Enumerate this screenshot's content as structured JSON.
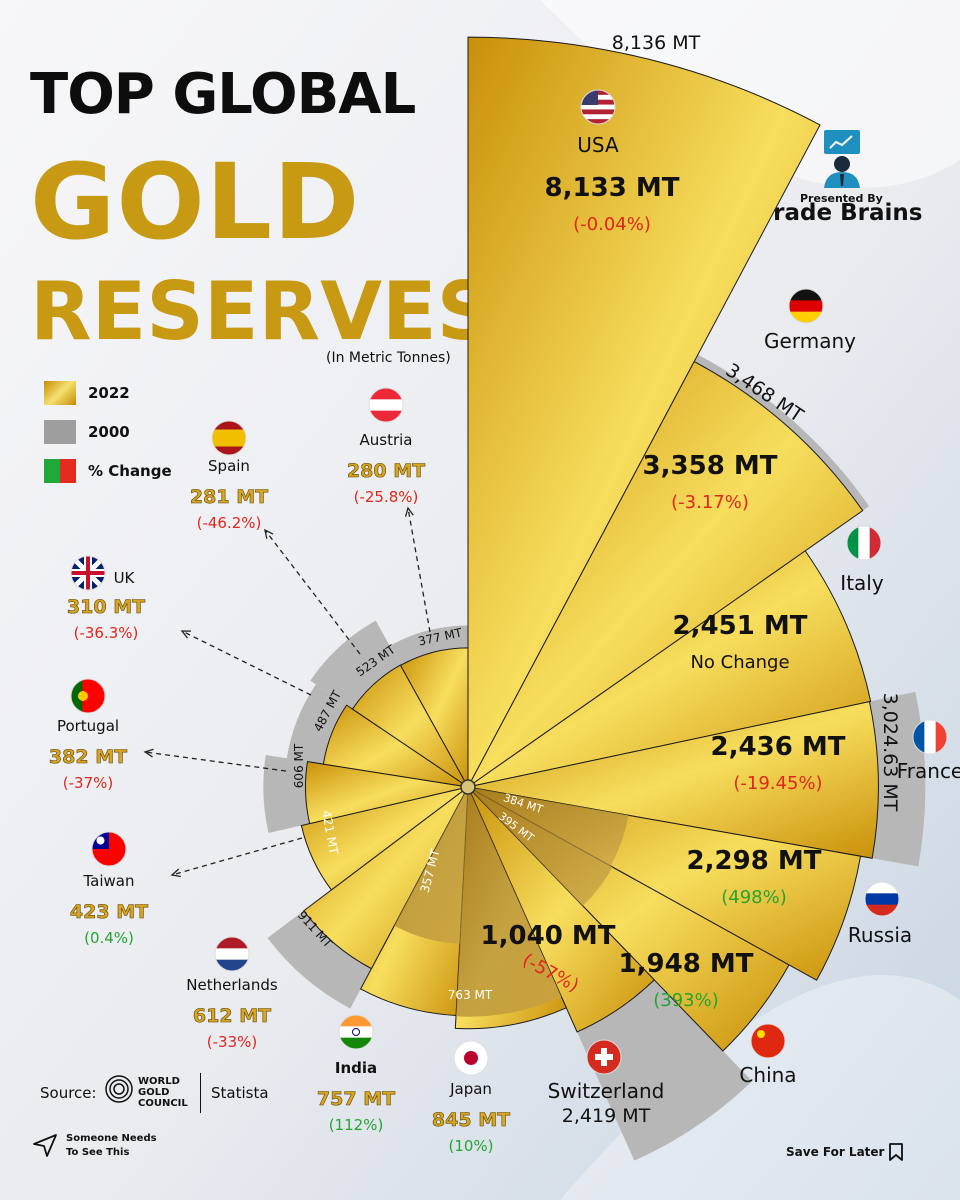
{
  "header": {
    "title_line1": "TOP GLOBAL",
    "title_line2": "GOLD",
    "title_line3": "RESERVES",
    "subtitle": "(In Metric Tonnes)"
  },
  "legend": [
    {
      "label": "2022",
      "style": "gold"
    },
    {
      "label": "2000",
      "style": "grey"
    },
    {
      "label": "% Change",
      "style": "change"
    }
  ],
  "branding": {
    "presented_by": "Presented By",
    "name": "Trade Brains",
    "icon": "presenter-icon"
  },
  "footer": {
    "source_label": "Source:",
    "wgc_line1": "WORLD",
    "wgc_line2": "GOLD",
    "wgc_line3": "COUNCIL",
    "statista": "Statista",
    "share_line1": "Someone Needs",
    "share_line2": "To See This",
    "save": "Save For Later"
  },
  "colors": {
    "gold_dark": "#c9900a",
    "gold_light": "#f8de5e",
    "grey": "#b7b7b7",
    "negative": "#e1261c",
    "positive": "#23a530",
    "text": "#111111"
  },
  "chart_data": {
    "type": "polar-bar",
    "title": "TOP GLOBAL GOLD RESERVES",
    "unit": "(In Metric Tonnes)",
    "series": [
      {
        "name": "2022"
      },
      {
        "name": "2000"
      },
      {
        "name": "% Change"
      }
    ],
    "countries": [
      {
        "name": "USA",
        "value_2022": 8133,
        "value_2000": 8136,
        "label_2022": "8,133 MT",
        "label_2000": "8,136 MT",
        "change": "(-0.04%)",
        "direction": "negative",
        "flag": "us-flag"
      },
      {
        "name": "Germany",
        "value_2022": 3358,
        "value_2000": 3468,
        "label_2022": "3,358 MT",
        "label_2000": "3,468 MT",
        "change": "(-3.17%)",
        "direction": "negative",
        "flag": "germany-flag"
      },
      {
        "name": "Italy",
        "value_2022": 2451,
        "value_2000": 2451,
        "label_2022": "2,451 MT",
        "label_2000": "",
        "change": "No Change",
        "direction": "neutral",
        "flag": "italy-flag"
      },
      {
        "name": "France",
        "value_2022": 2436,
        "value_2000": 3024.63,
        "label_2022": "2,436 MT",
        "label_2000": "3,024.63 MT",
        "change": "(-19.45%)",
        "direction": "negative",
        "flag": "france-flag"
      },
      {
        "name": "Russia",
        "value_2022": 2298,
        "value_2000": 384,
        "label_2022": "2,298 MT",
        "label_2000": "384 MT",
        "change": "(498%)",
        "direction": "positive",
        "flag": "russia-flag"
      },
      {
        "name": "China",
        "value_2022": 1948,
        "value_2000": 395,
        "label_2022": "1,948 MT",
        "label_2000": "395 MT",
        "change": "(393%)",
        "direction": "positive",
        "flag": "china-flag"
      },
      {
        "name": "Switzerland",
        "value_2022": 1040,
        "value_2000": 2419,
        "label_2022": "1,040 MT",
        "label_2000": "2,419 MT",
        "change": "(-57%)",
        "direction": "negative",
        "flag": "switzerland-flag"
      },
      {
        "name": "Japan",
        "value_2022": 845,
        "value_2000": 763,
        "label_2022": "845 MT",
        "label_2000": "763 MT",
        "change": "(10%)",
        "direction": "positive",
        "flag": "japan-flag"
      },
      {
        "name": "India",
        "value_2022": 757,
        "value_2000": 357,
        "label_2022": "757 MT",
        "label_2000": "357 MT",
        "change": "(112%)",
        "direction": "positive",
        "flag": "india-flag"
      },
      {
        "name": "Netherlands",
        "value_2022": 612,
        "value_2000": 911,
        "label_2022": "612 MT",
        "label_2000": "911 MT",
        "change": "(-33%)",
        "direction": "negative",
        "flag": "netherlands-flag"
      },
      {
        "name": "Taiwan",
        "value_2022": 423,
        "value_2000": 421,
        "label_2022": "423 MT",
        "label_2000": "421 MT",
        "change": "(0.4%)",
        "direction": "positive",
        "flag": "taiwan-flag"
      },
      {
        "name": "Portugal",
        "value_2022": 382,
        "value_2000": 606,
        "label_2022": "382 MT",
        "label_2000": "606 MT",
        "change": "(-37%)",
        "direction": "negative",
        "flag": "portugal-flag"
      },
      {
        "name": "UK",
        "value_2022": 310,
        "value_2000": 487,
        "label_2022": "310 MT",
        "label_2000": "487 MT",
        "change": "(-36.3%)",
        "direction": "negative",
        "flag": "uk-flag"
      },
      {
        "name": "Spain",
        "value_2022": 281,
        "value_2000": 523,
        "label_2022": "281 MT",
        "label_2000": "523 MT",
        "change": "(-46.2%)",
        "direction": "negative",
        "flag": "spain-flag"
      },
      {
        "name": "Austria",
        "value_2022": 280,
        "value_2000": 377,
        "label_2022": "280 MT",
        "label_2000": "377 MT",
        "change": "(-25.8%)",
        "direction": "negative",
        "flag": "austria-flag"
      }
    ]
  }
}
